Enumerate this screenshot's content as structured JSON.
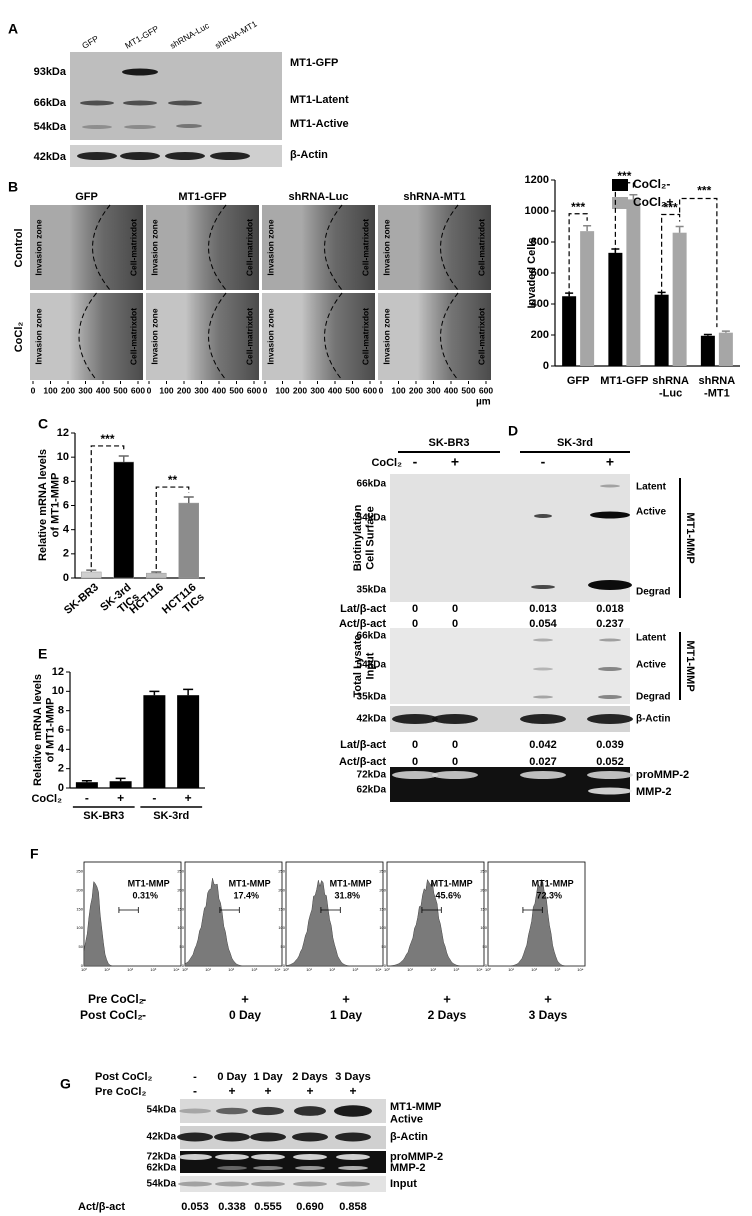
{
  "panel_a": {
    "label": "A",
    "lanes": [
      "GFP",
      "MT1-GFP",
      "shRNA-Luc",
      "shRNA-MT1"
    ],
    "markers": [
      "93kDa",
      "66kDa",
      "54kDa",
      "42kDa"
    ],
    "bands": [
      "MT1-GFP",
      "MT1-Latent",
      "MT1-Active",
      "β-Actin"
    ]
  },
  "panel_b": {
    "label": "B",
    "columns": [
      "GFP",
      "MT1-GFP",
      "shRNA-Luc",
      "shRNA-MT1"
    ],
    "rows": [
      "Control",
      "CoCl₂"
    ],
    "zone_label": "Invasion zone",
    "dot_label": "Cell-matrixdot",
    "scale_ticks": [
      0,
      100,
      200,
      300,
      400,
      500,
      600
    ],
    "scale_unit": "µm"
  },
  "chart_data": [
    {
      "type": "bar",
      "ylabel": "Invaded Cells",
      "categories": [
        "GFP",
        "MT1-GFP",
        "shRNA\n-Luc",
        "shRNA\n-MT1"
      ],
      "series": [
        {
          "name": "CoCl₂-",
          "color": "#000000",
          "values": [
            450,
            730,
            460,
            195
          ],
          "errors": [
            20,
            25,
            15,
            8
          ]
        },
        {
          "name": "CoCl₂+",
          "color": "#a6a6a6",
          "values": [
            870,
            1075,
            860,
            215
          ],
          "errors": [
            35,
            30,
            40,
            10
          ]
        }
      ],
      "ylim": [
        0,
        1200
      ],
      "yticks": [
        0,
        200,
        400,
        600,
        800,
        1000,
        1200
      ],
      "annotations": [
        "***",
        "***",
        "***",
        "***"
      ],
      "legend": "top-right"
    },
    {
      "type": "bar",
      "panel_label": "C",
      "ylabel": "Relative mRNA levels\nof MT1-MMP",
      "categories": [
        "SK-BR3",
        "SK-3rd\nTICs",
        "HCT116",
        "HCT116\nTICs"
      ],
      "values": [
        0.5,
        9.6,
        0.4,
        6.2
      ],
      "errors": [
        0.15,
        0.5,
        0.1,
        0.5
      ],
      "colors": [
        "#cfcfcf",
        "#000000",
        "#bdbdbd",
        "#8c8c8c"
      ],
      "ylim": [
        0,
        12
      ],
      "yticks": [
        0,
        2,
        4,
        6,
        8,
        10,
        12
      ],
      "annotations": [
        "***",
        "**"
      ]
    },
    {
      "type": "bar",
      "panel_label": "E",
      "ylabel": "Relative mRNA levels\nof MT1-MMP",
      "categories": [
        "-",
        "+",
        "-",
        "+"
      ],
      "xlabel": "CoCl₂",
      "groups": [
        "SK-BR3",
        "SK-3rd"
      ],
      "values": [
        0.6,
        0.7,
        9.6,
        9.6
      ],
      "errors": [
        0.15,
        0.3,
        0.4,
        0.6
      ],
      "color": "#000000",
      "ylim": [
        0,
        12
      ],
      "yticks": [
        0,
        2,
        4,
        6,
        8,
        10,
        12
      ]
    }
  ],
  "panel_d": {
    "label": "D",
    "groups": [
      "SK-BR3",
      "SK-3rd"
    ],
    "treatment": "CoCl₂",
    "signs": [
      "-",
      "+",
      "-",
      "+"
    ],
    "protein": "MT1-MMP",
    "surface": {
      "title": "Biotinylation\nCell Surface",
      "markers": [
        "66kDa",
        "54kDa",
        "35kDa"
      ],
      "bands": [
        "Latent",
        "Active",
        "Degrad"
      ]
    },
    "surface_ratios": [
      {
        "name": "Lat/β-act",
        "values": [
          "0",
          "0",
          "0.013",
          "0.018"
        ]
      },
      {
        "name": "Act/β-act",
        "values": [
          "0",
          "0",
          "0.054",
          "0.237"
        ]
      }
    ],
    "lysate": {
      "title": "Total Lysate\nInput",
      "markers": [
        "66kDa",
        "54kDa",
        "35kDa"
      ],
      "bands": [
        "Latent",
        "Active",
        "Degrad"
      ]
    },
    "actin": {
      "marker": "42kDa",
      "band": "β-Actin"
    },
    "lysate_ratios": [
      {
        "name": "Lat/β-act",
        "values": [
          "0",
          "0",
          "0.042",
          "0.039"
        ]
      },
      {
        "name": "Act/β-act",
        "values": [
          "0",
          "0",
          "0.027",
          "0.052"
        ]
      }
    ],
    "zymography": {
      "markers": [
        "72kDa",
        "62kDa"
      ],
      "bands": [
        "proMMP-2",
        "MMP-2"
      ]
    }
  },
  "panel_f": {
    "label": "F",
    "gate": "MT1-MMP",
    "percents": [
      "0.31%",
      "17.4%",
      "31.8%",
      "45.6%",
      "72.3%"
    ],
    "yticks": [
      "0",
      "50",
      "100",
      "150",
      "200",
      "250"
    ],
    "xticks": [
      "10⁰",
      "10¹",
      "10²",
      "10³",
      "10⁴"
    ],
    "pre_label": "Pre CoCl₂",
    "pre": [
      "-",
      "+",
      "+",
      "+",
      "+"
    ],
    "post_label": "Post CoCl₂",
    "post": [
      "-",
      "0 Day",
      "1 Day",
      "2 Days",
      "3 Days"
    ]
  },
  "panel_g": {
    "label": "G",
    "post_label": "Post CoCl₂",
    "post": [
      "-",
      "0 Day",
      "1 Day",
      "2 Days",
      "3 Days"
    ],
    "pre_label": "Pre CoCl₂",
    "pre": [
      "-",
      "+",
      "+",
      "+",
      "+"
    ],
    "blots": [
      {
        "marker": "54kDa",
        "band": "MT1-MMP\nActive"
      },
      {
        "marker": "42kDa",
        "band": "β-Actin"
      },
      {
        "markers": [
          "72kDa",
          "62kDa"
        ],
        "bands": [
          "proMMP-2",
          "MMP-2"
        ]
      },
      {
        "marker": "54kDa",
        "band": "Input"
      }
    ],
    "ratio_label": "Act/β-act",
    "ratios": [
      "0.053",
      "0.338",
      "0.555",
      "0.690",
      "0.858"
    ]
  }
}
